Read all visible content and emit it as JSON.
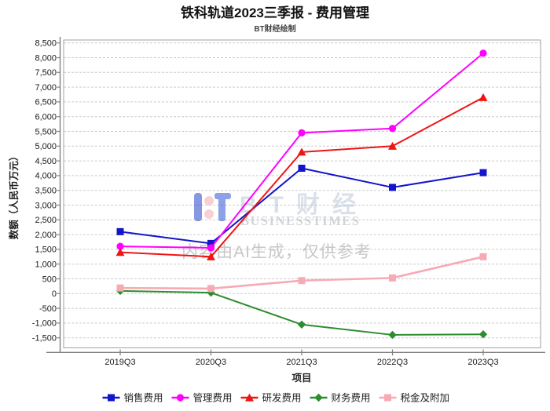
{
  "header": {
    "title": "铁科轨道2023三季报 - 费用管理",
    "subtitle": "BT财经绘制"
  },
  "watermark": {
    "brand": "BT财经",
    "brand_sub": "BUSINESSTIMES",
    "ai_note": "内容由AI生成，仅供参考"
  },
  "chart_data": {
    "type": "line",
    "title": "铁科轨道2023三季报 - 费用管理",
    "subtitle": "BT财经绘制",
    "xlabel": "项目",
    "ylabel": "数额（人民币万元）",
    "categories": [
      "2019Q3",
      "2020Q3",
      "2021Q3",
      "2022Q3",
      "2023Q3"
    ],
    "series": [
      {
        "name": "销售费用",
        "marker": "square",
        "color": "#1414cc",
        "values": [
          2100,
          1700,
          4250,
          3600,
          4100
        ]
      },
      {
        "name": "管理费用",
        "marker": "circle",
        "color": "#ff00ff",
        "values": [
          1600,
          1550,
          5450,
          5600,
          8150
        ]
      },
      {
        "name": "研发费用",
        "marker": "triangle",
        "color": "#f01414",
        "values": [
          1400,
          1250,
          4800,
          5000,
          6650
        ]
      },
      {
        "name": "财务费用",
        "marker": "diamond",
        "color": "#2e8b2e",
        "values": [
          90,
          30,
          -1050,
          -1400,
          -1380
        ]
      },
      {
        "name": "税金及附加",
        "marker": "square",
        "color": "#f7aab4",
        "values": [
          190,
          170,
          440,
          530,
          1250
        ]
      }
    ],
    "ylim": [
      -1500,
      8500
    ],
    "ytick_step": 500,
    "ytick_labels": [
      "8,500",
      "8,000",
      "7,500",
      "7,000",
      "6,500",
      "6,000",
      "5,500",
      "5,000",
      "4,500",
      "4,000",
      "3,500",
      "3,000",
      "2,500",
      "2,000",
      "1,500",
      "1,000",
      "500",
      "0",
      "-500",
      "-1,000",
      "-1,500"
    ],
    "grid": true,
    "legend_position": "bottom"
  }
}
